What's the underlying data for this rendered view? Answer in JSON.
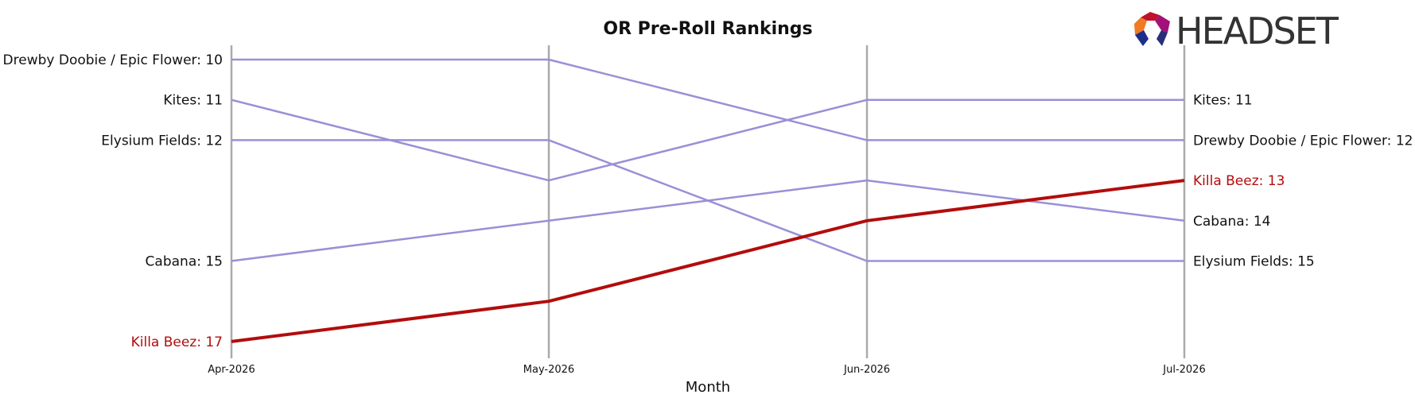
{
  "chart_data": {
    "type": "line",
    "title": "OR Pre-Roll Rankings",
    "xlabel": "Month",
    "ylabel": "",
    "categories": [
      "Apr-2026",
      "May-2026",
      "Jun-2026",
      "Jul-2026"
    ],
    "y_inverted": true,
    "ylim": [
      10,
      17
    ],
    "grid": "vertical lines at each month",
    "series": [
      {
        "name": "Drewby Doobie / Epic Flower",
        "values": [
          10,
          10,
          12,
          12
        ],
        "color": "#9b8fd6",
        "highlight": false
      },
      {
        "name": "Kites",
        "values": [
          11,
          13,
          11,
          11
        ],
        "color": "#9b8fd6",
        "highlight": false
      },
      {
        "name": "Elysium Fields",
        "values": [
          12,
          12,
          15,
          15
        ],
        "color": "#9b8fd6",
        "highlight": false
      },
      {
        "name": "Cabana",
        "values": [
          15,
          14,
          13,
          14
        ],
        "color": "#9b8fd6",
        "highlight": false
      },
      {
        "name": "Killa Beez",
        "values": [
          17,
          16,
          14,
          13
        ],
        "color": "#b30c0c",
        "highlight": true
      }
    ],
    "left_labels": [
      {
        "text": "Drewby Doobie / Epic Flower: 10",
        "rank": 10,
        "highlight": false
      },
      {
        "text": "Kites: 11",
        "rank": 11,
        "highlight": false
      },
      {
        "text": "Elysium Fields: 12",
        "rank": 12,
        "highlight": false
      },
      {
        "text": "Cabana: 15",
        "rank": 15,
        "highlight": false
      },
      {
        "text": "Killa Beez: 17",
        "rank": 17,
        "highlight": true
      }
    ],
    "right_labels": [
      {
        "text": "Kites: 11",
        "rank": 11,
        "highlight": false
      },
      {
        "text": "Drewby Doobie / Epic Flower: 12",
        "rank": 12,
        "highlight": false
      },
      {
        "text": "Killa Beez: 13",
        "rank": 13,
        "highlight": true
      },
      {
        "text": "Cabana: 14",
        "rank": 14,
        "highlight": false
      },
      {
        "text": "Elysium Fields: 15",
        "rank": 15,
        "highlight": false
      }
    ]
  },
  "logo": {
    "text": "HEADSET",
    "icon": "headset-logo-icon"
  },
  "colors": {
    "highlight": "#b30c0c",
    "series": "#9b8fd6",
    "gridline": "#aaaaaa",
    "text": "#111111"
  }
}
